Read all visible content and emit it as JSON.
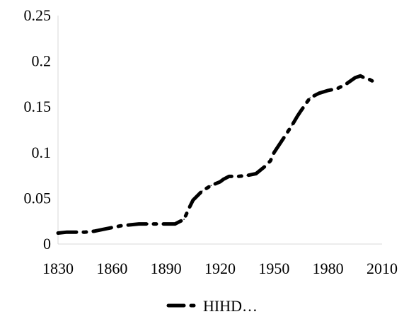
{
  "chart_data": {
    "type": "line",
    "title": "",
    "xlabel": "",
    "ylabel": "",
    "xlim": [
      1830,
      2010
    ],
    "ylim": [
      0,
      0.25
    ],
    "x_ticks": [
      1830,
      1860,
      1890,
      1920,
      1950,
      1980,
      2010
    ],
    "x_tick_labels": [
      "1830",
      "1860",
      "1890",
      "1920",
      "1950",
      "1980",
      "2010"
    ],
    "y_ticks": [
      0,
      0.05,
      0.1,
      0.15,
      0.2,
      0.25
    ],
    "y_tick_labels": [
      "0",
      "0.05",
      "0.1",
      "0.15",
      "0.2",
      "0.25"
    ],
    "grid": false,
    "legend_position": "bottom",
    "line_style": "long-dash-dot",
    "series": [
      {
        "name": "HIHD…",
        "color": "#000000",
        "x": [
          1830,
          1835,
          1840,
          1845,
          1850,
          1855,
          1860,
          1865,
          1870,
          1875,
          1880,
          1885,
          1890,
          1895,
          1900,
          1903,
          1905,
          1910,
          1915,
          1920,
          1922,
          1925,
          1930,
          1935,
          1940,
          1945,
          1948,
          1950,
          1955,
          1960,
          1963,
          1965,
          1970,
          1975,
          1980,
          1985,
          1990,
          1995,
          1998,
          2000,
          2003,
          2005
        ],
        "values": [
          0.012,
          0.013,
          0.013,
          0.013,
          0.014,
          0.016,
          0.018,
          0.02,
          0.021,
          0.022,
          0.022,
          0.022,
          0.022,
          0.022,
          0.027,
          0.04,
          0.048,
          0.058,
          0.064,
          0.068,
          0.071,
          0.074,
          0.074,
          0.075,
          0.077,
          0.085,
          0.091,
          0.1,
          0.115,
          0.13,
          0.14,
          0.146,
          0.16,
          0.165,
          0.168,
          0.17,
          0.175,
          0.182,
          0.184,
          0.182,
          0.18,
          0.178
        ]
      }
    ]
  }
}
